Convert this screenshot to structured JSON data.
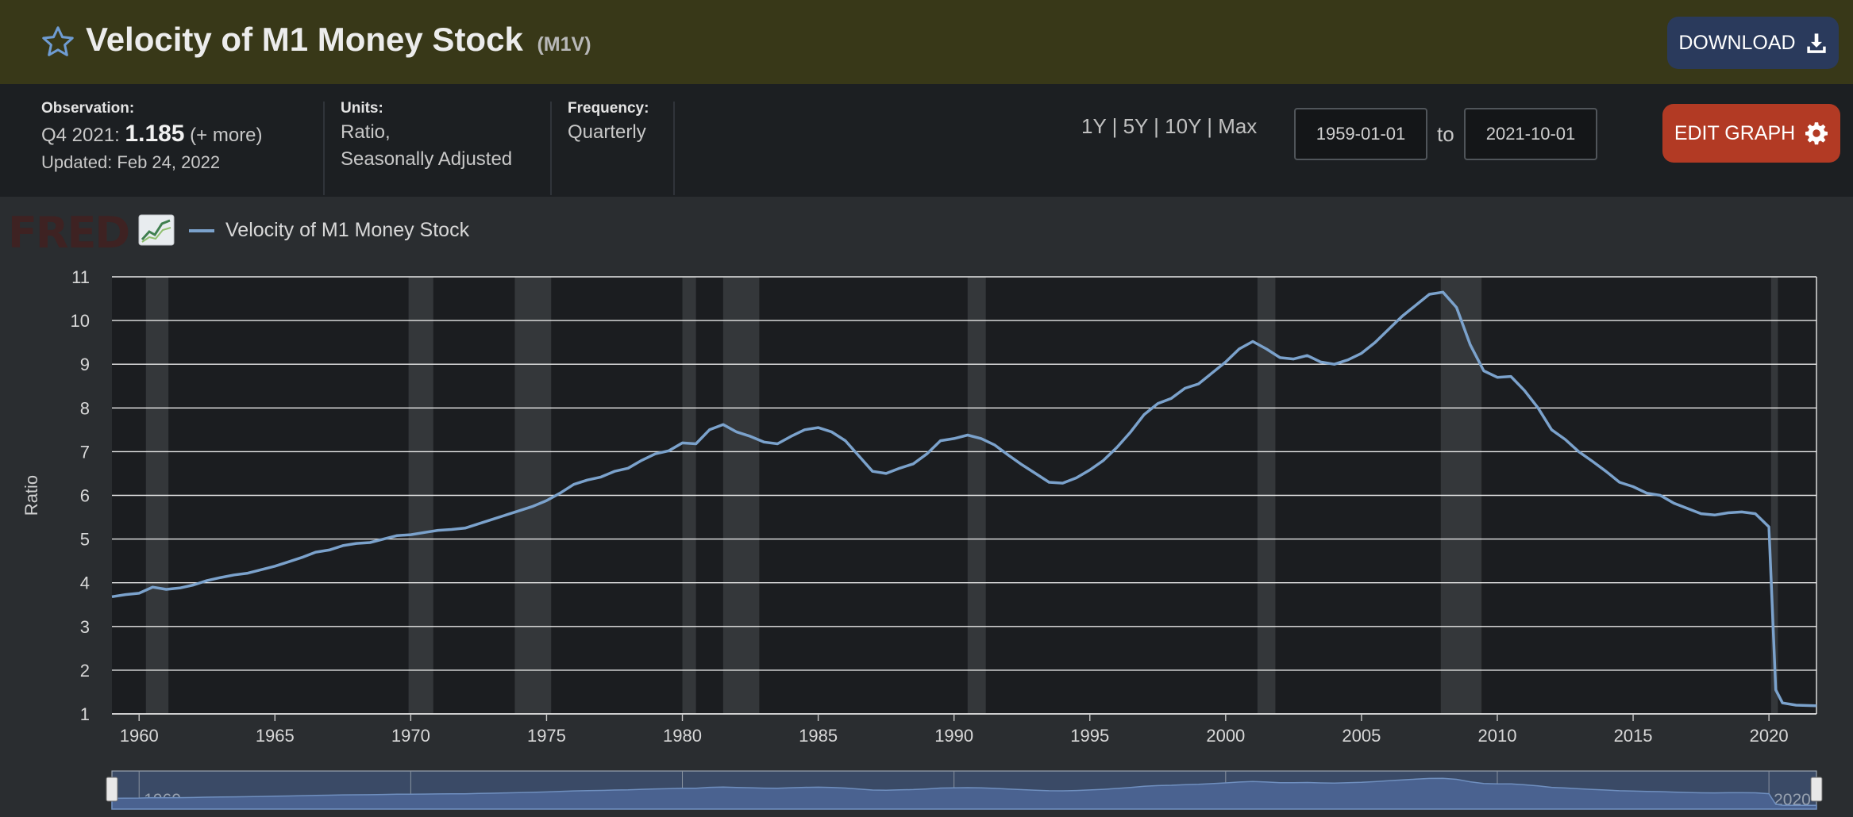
{
  "header": {
    "title": "Velocity of M1 Money Stock",
    "code": "(M1V)",
    "download_label": "DOWNLOAD"
  },
  "info": {
    "observation_label": "Observation:",
    "observation_period": "Q4 2021:",
    "observation_value": "1.185",
    "observation_more": "(+ more)",
    "updated": "Updated: Feb 24, 2022",
    "units_label": "Units:",
    "units_line1": "Ratio,",
    "units_line2": "Seasonally Adjusted",
    "frequency_label": "Frequency:",
    "frequency_value": "Quarterly"
  },
  "controls": {
    "range_1y": "1Y",
    "range_5y": "5Y",
    "range_10y": "10Y",
    "range_max": "Max",
    "separator": "|",
    "start_date": "1959-01-01",
    "to_label": "to",
    "end_date": "2021-10-01",
    "edit_label": "EDIT GRAPH"
  },
  "logo_text": "FRED",
  "colors": {
    "series": "#7ba2cc",
    "header_bg": "#383818",
    "download_bg": "#2a3a5c",
    "edit_bg": "#b23a24",
    "recession": "#34373a"
  },
  "chart_data": {
    "type": "line",
    "title": "Velocity of M1 Money Stock",
    "ylabel": "Ratio",
    "xlabel": "",
    "xlim": [
      1959.0,
      2021.75
    ],
    "ylim": [
      1,
      11
    ],
    "yticks": [
      1,
      2,
      3,
      4,
      5,
      6,
      7,
      8,
      9,
      10,
      11
    ],
    "xticks": [
      1960,
      1965,
      1970,
      1975,
      1980,
      1985,
      1990,
      1995,
      2000,
      2005,
      2010,
      2015,
      2020
    ],
    "navigator_ticks": [
      1960,
      1970,
      1980,
      1990,
      2000,
      2010,
      2020
    ],
    "grid": true,
    "legend": "top-left",
    "recessions": [
      [
        1960.25,
        1961.08
      ],
      [
        1969.92,
        1970.83
      ],
      [
        1973.83,
        1975.17
      ],
      [
        1980.0,
        1980.5
      ],
      [
        1981.5,
        1982.83
      ],
      [
        1990.5,
        1991.17
      ],
      [
        2001.17,
        2001.83
      ],
      [
        2007.92,
        2009.42
      ],
      [
        2020.08,
        2020.33
      ]
    ],
    "series": [
      {
        "name": "Velocity of M1 Money Stock",
        "points": [
          [
            1959.0,
            3.68
          ],
          [
            1959.5,
            3.73
          ],
          [
            1960.0,
            3.76
          ],
          [
            1960.5,
            3.9
          ],
          [
            1961.0,
            3.85
          ],
          [
            1961.5,
            3.88
          ],
          [
            1962.0,
            3.95
          ],
          [
            1962.5,
            4.05
          ],
          [
            1963.0,
            4.12
          ],
          [
            1963.5,
            4.18
          ],
          [
            1964.0,
            4.22
          ],
          [
            1964.5,
            4.3
          ],
          [
            1965.0,
            4.38
          ],
          [
            1965.5,
            4.48
          ],
          [
            1966.0,
            4.58
          ],
          [
            1966.5,
            4.7
          ],
          [
            1967.0,
            4.75
          ],
          [
            1967.5,
            4.85
          ],
          [
            1968.0,
            4.9
          ],
          [
            1968.5,
            4.92
          ],
          [
            1969.0,
            5.0
          ],
          [
            1969.5,
            5.08
          ],
          [
            1970.0,
            5.1
          ],
          [
            1970.5,
            5.15
          ],
          [
            1971.0,
            5.2
          ],
          [
            1971.5,
            5.22
          ],
          [
            1972.0,
            5.25
          ],
          [
            1972.5,
            5.35
          ],
          [
            1973.0,
            5.45
          ],
          [
            1973.5,
            5.55
          ],
          [
            1974.0,
            5.65
          ],
          [
            1974.5,
            5.75
          ],
          [
            1975.0,
            5.88
          ],
          [
            1975.5,
            6.05
          ],
          [
            1976.0,
            6.25
          ],
          [
            1976.5,
            6.35
          ],
          [
            1977.0,
            6.42
          ],
          [
            1977.5,
            6.55
          ],
          [
            1978.0,
            6.62
          ],
          [
            1978.5,
            6.8
          ],
          [
            1979.0,
            6.95
          ],
          [
            1979.5,
            7.02
          ],
          [
            1980.0,
            7.2
          ],
          [
            1980.5,
            7.18
          ],
          [
            1981.0,
            7.5
          ],
          [
            1981.5,
            7.62
          ],
          [
            1982.0,
            7.45
          ],
          [
            1982.5,
            7.35
          ],
          [
            1983.0,
            7.22
          ],
          [
            1983.5,
            7.18
          ],
          [
            1984.0,
            7.35
          ],
          [
            1984.5,
            7.5
          ],
          [
            1985.0,
            7.55
          ],
          [
            1985.5,
            7.45
          ],
          [
            1986.0,
            7.25
          ],
          [
            1986.5,
            6.9
          ],
          [
            1987.0,
            6.55
          ],
          [
            1987.5,
            6.5
          ],
          [
            1988.0,
            6.62
          ],
          [
            1988.5,
            6.72
          ],
          [
            1989.0,
            6.95
          ],
          [
            1989.5,
            7.25
          ],
          [
            1990.0,
            7.3
          ],
          [
            1990.5,
            7.38
          ],
          [
            1991.0,
            7.3
          ],
          [
            1991.5,
            7.15
          ],
          [
            1992.0,
            6.92
          ],
          [
            1992.5,
            6.7
          ],
          [
            1993.0,
            6.5
          ],
          [
            1993.5,
            6.3
          ],
          [
            1994.0,
            6.28
          ],
          [
            1994.5,
            6.4
          ],
          [
            1995.0,
            6.58
          ],
          [
            1995.5,
            6.8
          ],
          [
            1996.0,
            7.1
          ],
          [
            1996.5,
            7.45
          ],
          [
            1997.0,
            7.85
          ],
          [
            1997.5,
            8.1
          ],
          [
            1998.0,
            8.22
          ],
          [
            1998.5,
            8.45
          ],
          [
            1999.0,
            8.55
          ],
          [
            1999.5,
            8.8
          ],
          [
            2000.0,
            9.05
          ],
          [
            2000.5,
            9.35
          ],
          [
            2001.0,
            9.52
          ],
          [
            2001.5,
            9.35
          ],
          [
            2002.0,
            9.15
          ],
          [
            2002.5,
            9.12
          ],
          [
            2003.0,
            9.2
          ],
          [
            2003.5,
            9.05
          ],
          [
            2004.0,
            9.0
          ],
          [
            2004.5,
            9.1
          ],
          [
            2005.0,
            9.25
          ],
          [
            2005.5,
            9.5
          ],
          [
            2006.0,
            9.8
          ],
          [
            2006.5,
            10.1
          ],
          [
            2007.0,
            10.35
          ],
          [
            2007.5,
            10.6
          ],
          [
            2008.0,
            10.65
          ],
          [
            2008.5,
            10.3
          ],
          [
            2009.0,
            9.45
          ],
          [
            2009.5,
            8.85
          ],
          [
            2010.0,
            8.7
          ],
          [
            2010.5,
            8.72
          ],
          [
            2011.0,
            8.4
          ],
          [
            2011.5,
            8.0
          ],
          [
            2012.0,
            7.5
          ],
          [
            2012.5,
            7.28
          ],
          [
            2013.0,
            7.0
          ],
          [
            2013.5,
            6.78
          ],
          [
            2014.0,
            6.55
          ],
          [
            2014.5,
            6.3
          ],
          [
            2015.0,
            6.2
          ],
          [
            2015.5,
            6.05
          ],
          [
            2016.0,
            6.0
          ],
          [
            2016.5,
            5.82
          ],
          [
            2017.0,
            5.7
          ],
          [
            2017.5,
            5.58
          ],
          [
            2018.0,
            5.55
          ],
          [
            2018.5,
            5.6
          ],
          [
            2019.0,
            5.62
          ],
          [
            2019.5,
            5.58
          ],
          [
            2020.0,
            5.28
          ],
          [
            2020.25,
            1.55
          ],
          [
            2020.5,
            1.25
          ],
          [
            2021.0,
            1.2
          ],
          [
            2021.75,
            1.185
          ]
        ]
      }
    ]
  }
}
